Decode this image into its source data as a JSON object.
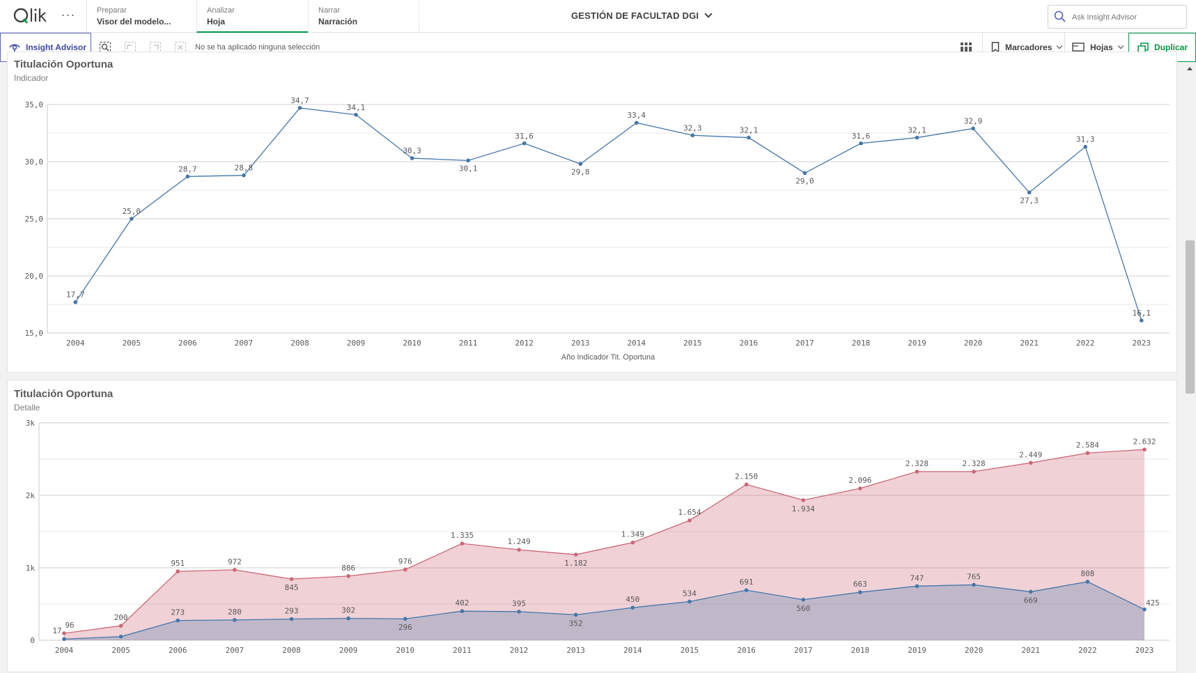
{
  "nav": {
    "logo": "Qlik",
    "more": "···",
    "tabs": [
      {
        "label": "Preparar",
        "value": "Visor del modelo..."
      },
      {
        "label": "Analizar",
        "value": "Hoja"
      },
      {
        "label": "Narrar",
        "value": "Narración"
      }
    ],
    "app_title": "GESTIÓN DE FACULTAD DGI",
    "search_placeholder": "Ask Insight Advisor"
  },
  "toolbar": {
    "insight_advisor": "Insight Advisor",
    "no_selection": "No se ha aplicado ninguna selección",
    "bookmarks": "Marcadores",
    "sheets": "Hojas",
    "duplicate": "Duplicar"
  },
  "colors": {
    "accent_green": "#009845",
    "line_blue": "#4477aa",
    "area_red": "#cc6677",
    "insight_purple": "#5a62c2"
  },
  "chart_data": [
    {
      "type": "line",
      "title": "Titulación Oportuna",
      "subtitle": "Indicador",
      "xlabel": "Año Indicador Tit. Oportuna",
      "ylabel": "",
      "ylim": [
        15,
        35
      ],
      "yticks": [
        "15,0",
        "20,0",
        "25,0",
        "30,0",
        "35,0"
      ],
      "grid": true,
      "categories": [
        "2004",
        "2005",
        "2006",
        "2007",
        "2008",
        "2009",
        "2010",
        "2011",
        "2012",
        "2013",
        "2014",
        "2015",
        "2016",
        "2017",
        "2018",
        "2019",
        "2020",
        "2021",
        "2022",
        "2023"
      ],
      "values": [
        17.7,
        25.0,
        28.7,
        28.8,
        34.7,
        34.1,
        30.3,
        30.1,
        31.6,
        29.8,
        33.4,
        32.3,
        32.1,
        29.0,
        31.6,
        32.1,
        32.9,
        27.3,
        31.3,
        16.1
      ],
      "labels": [
        "17,7",
        "25,0",
        "28,7",
        "28,8",
        "34,7",
        "34,1",
        "30,3",
        "30,1",
        "31,6",
        "29,8",
        "33,4",
        "32,3",
        "32,1",
        "29,0",
        "31,6",
        "32,1",
        "32,9",
        "27,3",
        "31,3",
        "16,1"
      ]
    },
    {
      "type": "area",
      "title": "Titulación Oportuna",
      "subtitle": "Detalle",
      "xlabel": "",
      "ylabel": "",
      "ylim": [
        0,
        3000
      ],
      "yticks": [
        "0",
        "1k",
        "2k",
        "3k"
      ],
      "grid": true,
      "categories": [
        "2004",
        "2005",
        "2006",
        "2007",
        "2008",
        "2009",
        "2010",
        "2011",
        "2012",
        "2013",
        "2014",
        "2015",
        "2016",
        "2017",
        "2018",
        "2019",
        "2020",
        "2021",
        "2022",
        "2023"
      ],
      "series": [
        {
          "values": [
            96,
            200,
            951,
            972,
            845,
            886,
            976,
            1335,
            1249,
            1182,
            1349,
            1654,
            2150,
            1934,
            2096,
            2328,
            2328,
            2449,
            2584,
            2632
          ],
          "labels": [
            "96",
            "200",
            "951",
            "972",
            "845",
            "886",
            "976",
            "1.335",
            "1.249",
            "1.182",
            "1.349",
            "1.654",
            "2.150",
            "1.934",
            "2.096",
            "2.328",
            "2.328",
            "2.449",
            "2.584",
            "2.632"
          ]
        },
        {
          "values": [
            17,
            50,
            273,
            280,
            293,
            302,
            296,
            402,
            395,
            352,
            450,
            534,
            691,
            560,
            663,
            747,
            765,
            669,
            808,
            425
          ],
          "labels": [
            "17",
            "",
            "273",
            "280",
            "293",
            "302",
            "296",
            "402",
            "395",
            "352",
            "450",
            "534",
            "691",
            "560",
            "663",
            "747",
            "765",
            "669",
            "808",
            "425"
          ]
        }
      ]
    }
  ]
}
